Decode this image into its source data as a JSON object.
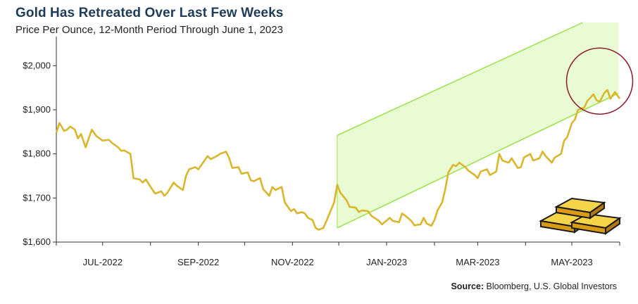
{
  "title": "Gold Has Retreated Over Last Few Weeks",
  "subtitle": "Price Per Ounce, 12-Month Period Through June 1, 2023",
  "source_label": "Source:",
  "source_text": "Bloomberg, U.S. Global Investors",
  "colors": {
    "line": "#d9b62b",
    "channel_fill": "#e9fbd2",
    "channel_stroke": "#9be24a",
    "circle": "#8b1a2b",
    "axis": "#333333"
  },
  "chart_data": {
    "type": "line",
    "title": "Gold Has Retreated Over Last Few Weeks",
    "subtitle": "Price Per Ounce, 12-Month Period Through June 1, 2023",
    "xlabel": "",
    "ylabel": "",
    "ylim": [
      1600,
      2050
    ],
    "yticks": [
      {
        "value": 1600,
        "label": "$1,600"
      },
      {
        "value": 1700,
        "label": "$1,700"
      },
      {
        "value": 1800,
        "label": "$1,800"
      },
      {
        "value": 1900,
        "label": "$1,900"
      },
      {
        "value": 2000,
        "label": "$2,000"
      }
    ],
    "xrange": [
      "2022-06-01",
      "2023-06-01"
    ],
    "xticks": [
      {
        "date": "2022-07-01",
        "label": "JUL-2022"
      },
      {
        "date": "2022-09-01",
        "label": "SEP-2022"
      },
      {
        "date": "2022-11-01",
        "label": "NOV-2022"
      },
      {
        "date": "2023-01-01",
        "label": "JAN-2023"
      },
      {
        "date": "2023-03-01",
        "label": "MAR-2023"
      },
      {
        "date": "2023-05-01",
        "label": "MAY-2023"
      }
    ],
    "grid": false,
    "series": [
      {
        "name": "",
        "points": [
          [
            "2022-06-01",
            1848
          ],
          [
            "2022-06-03",
            1870
          ],
          [
            "2022-06-06",
            1852
          ],
          [
            "2022-06-08",
            1855
          ],
          [
            "2022-06-10",
            1862
          ],
          [
            "2022-06-13",
            1855
          ],
          [
            "2022-06-15",
            1835
          ],
          [
            "2022-06-17",
            1845
          ],
          [
            "2022-06-20",
            1815
          ],
          [
            "2022-06-22",
            1835
          ],
          [
            "2022-06-24",
            1855
          ],
          [
            "2022-06-27",
            1840
          ],
          [
            "2022-06-29",
            1835
          ],
          [
            "2022-07-01",
            1830
          ],
          [
            "2022-07-05",
            1832
          ],
          [
            "2022-07-07",
            1825
          ],
          [
            "2022-07-11",
            1815
          ],
          [
            "2022-07-13",
            1807
          ],
          [
            "2022-07-15",
            1808
          ],
          [
            "2022-07-19",
            1800
          ],
          [
            "2022-07-21",
            1745
          ],
          [
            "2022-07-25",
            1742
          ],
          [
            "2022-07-27",
            1735
          ],
          [
            "2022-07-29",
            1742
          ],
          [
            "2022-08-02",
            1720
          ],
          [
            "2022-08-04",
            1710
          ],
          [
            "2022-08-08",
            1715
          ],
          [
            "2022-08-10",
            1705
          ],
          [
            "2022-08-12",
            1712
          ],
          [
            "2022-08-16",
            1735
          ],
          [
            "2022-08-18",
            1728
          ],
          [
            "2022-08-22",
            1718
          ],
          [
            "2022-08-24",
            1750
          ],
          [
            "2022-08-26",
            1765
          ],
          [
            "2022-08-30",
            1770
          ],
          [
            "2022-09-01",
            1765
          ],
          [
            "2022-09-05",
            1785
          ],
          [
            "2022-09-07",
            1795
          ],
          [
            "2022-09-09",
            1788
          ],
          [
            "2022-09-13",
            1795
          ],
          [
            "2022-09-15",
            1800
          ],
          [
            "2022-09-19",
            1805
          ],
          [
            "2022-09-21",
            1790
          ],
          [
            "2022-09-23",
            1768
          ],
          [
            "2022-09-27",
            1770
          ],
          [
            "2022-09-29",
            1755
          ],
          [
            "2022-10-03",
            1758
          ],
          [
            "2022-10-05",
            1740
          ],
          [
            "2022-10-07",
            1738
          ],
          [
            "2022-10-11",
            1745
          ],
          [
            "2022-10-13",
            1720
          ],
          [
            "2022-10-17",
            1705
          ],
          [
            "2022-10-19",
            1725
          ],
          [
            "2022-10-21",
            1718
          ],
          [
            "2022-10-25",
            1725
          ],
          [
            "2022-10-27",
            1690
          ],
          [
            "2022-10-31",
            1670
          ],
          [
            "2022-11-02",
            1675
          ],
          [
            "2022-11-04",
            1665
          ],
          [
            "2022-11-07",
            1668
          ],
          [
            "2022-11-09",
            1665
          ],
          [
            "2022-11-11",
            1655
          ],
          [
            "2022-11-14",
            1650
          ],
          [
            "2022-11-16",
            1632
          ],
          [
            "2022-11-18",
            1628
          ],
          [
            "2022-11-21",
            1632
          ],
          [
            "2022-11-23",
            1648
          ],
          [
            "2022-11-28",
            1690
          ],
          [
            "2022-11-30",
            1730
          ],
          [
            "2022-12-02",
            1712
          ],
          [
            "2022-12-06",
            1695
          ],
          [
            "2022-12-08",
            1680
          ],
          [
            "2022-12-12",
            1678
          ],
          [
            "2022-12-14",
            1668
          ],
          [
            "2022-12-16",
            1672
          ],
          [
            "2022-12-20",
            1670
          ],
          [
            "2022-12-22",
            1660
          ],
          [
            "2022-12-27",
            1648
          ],
          [
            "2022-12-29",
            1640
          ],
          [
            "2023-01-03",
            1655
          ],
          [
            "2023-01-05",
            1648
          ],
          [
            "2023-01-09",
            1645
          ],
          [
            "2023-01-11",
            1665
          ],
          [
            "2023-01-13",
            1660
          ],
          [
            "2023-01-17",
            1648
          ],
          [
            "2023-01-19",
            1638
          ],
          [
            "2023-01-23",
            1640
          ],
          [
            "2023-01-25",
            1655
          ],
          [
            "2023-01-27",
            1642
          ],
          [
            "2023-01-30",
            1637
          ],
          [
            "2023-02-01",
            1650
          ],
          [
            "2023-02-03",
            1672
          ],
          [
            "2023-02-06",
            1690
          ],
          [
            "2023-02-08",
            1720
          ],
          [
            "2023-02-10",
            1758
          ],
          [
            "2023-02-13",
            1775
          ],
          [
            "2023-02-15",
            1772
          ],
          [
            "2023-02-17",
            1780
          ],
          [
            "2023-02-21",
            1770
          ],
          [
            "2023-02-23",
            1762
          ],
          [
            "2023-02-27",
            1752
          ],
          [
            "2023-03-01",
            1745
          ],
          [
            "2023-03-03",
            1760
          ],
          [
            "2023-03-07",
            1765
          ],
          [
            "2023-03-09",
            1752
          ],
          [
            "2023-03-13",
            1760
          ],
          [
            "2023-03-15",
            1800
          ],
          [
            "2023-03-17",
            1785
          ],
          [
            "2023-03-21",
            1780
          ],
          [
            "2023-03-23",
            1790
          ],
          [
            "2023-03-27",
            1768
          ],
          [
            "2023-03-29",
            1770
          ],
          [
            "2023-03-31",
            1792
          ],
          [
            "2023-04-04",
            1800
          ],
          [
            "2023-04-06",
            1785
          ],
          [
            "2023-04-10",
            1790
          ],
          [
            "2023-04-12",
            1805
          ],
          [
            "2023-04-14",
            1795
          ],
          [
            "2023-04-18",
            1780
          ],
          [
            "2023-04-20",
            1792
          ],
          [
            "2023-04-24",
            1800
          ],
          [
            "2023-04-26",
            1830
          ],
          [
            "2023-04-28",
            1838
          ],
          [
            "2023-05-01",
            1870
          ],
          [
            "2023-05-03",
            1878
          ],
          [
            "2023-05-05",
            1900
          ],
          [
            "2023-05-09",
            1905
          ],
          [
            "2023-05-11",
            1920
          ],
          [
            "2023-05-15",
            1935
          ],
          [
            "2023-05-17",
            1922
          ],
          [
            "2023-05-19",
            1918
          ],
          [
            "2023-05-22",
            1938
          ],
          [
            "2023-05-24",
            1945
          ],
          [
            "2023-05-26",
            1925
          ],
          [
            "2023-05-29",
            1940
          ],
          [
            "2023-06-01",
            1925
          ]
        ]
      }
    ],
    "annotations": [
      {
        "type": "channel",
        "description": "upward trend channel"
      },
      {
        "type": "circle",
        "description": "recent retreat"
      }
    ]
  }
}
